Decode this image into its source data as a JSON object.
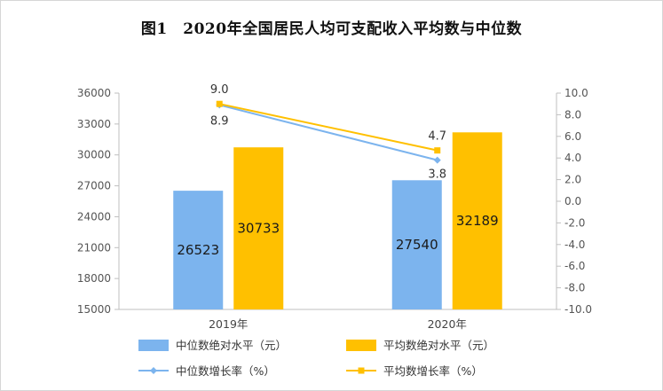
{
  "title": "图1　2020年全国居民人均可支配收入平均数与中位数",
  "chart_data": {
    "type": "bar",
    "title": "图1　2020年全国居民人均可支配收入平均数与中位数",
    "categories": [
      "2019年",
      "2020年"
    ],
    "series": [
      {
        "name": "中位数绝对水平（元）",
        "kind": "bar",
        "axis": "left",
        "color": "#7cb4ee",
        "values": [
          26523,
          27540
        ],
        "labels": [
          "26523",
          "27540"
        ]
      },
      {
        "name": "平均数绝对水平（元）",
        "kind": "bar",
        "axis": "left",
        "color": "#ffc000",
        "values": [
          30733,
          32189
        ],
        "labels": [
          "30733",
          "32189"
        ]
      },
      {
        "name": "中位数增长率（%）",
        "kind": "line",
        "axis": "right",
        "color": "#7cb4ee",
        "values": [
          8.9,
          3.8
        ],
        "labels": [
          "8.9",
          "3.8"
        ]
      },
      {
        "name": "平均数增长率（%）",
        "kind": "line",
        "axis": "right",
        "color": "#ffc000",
        "values": [
          9.0,
          4.7
        ],
        "labels": [
          "9.0",
          "4.7"
        ]
      }
    ],
    "left_axis": {
      "ylim": [
        15000,
        36000
      ],
      "ticks": [
        "15000",
        "18000",
        "21000",
        "24000",
        "27000",
        "30000",
        "33000",
        "36000"
      ]
    },
    "right_axis": {
      "ylim": [
        -10,
        10
      ],
      "ticks": [
        "-10.0",
        "-8.0",
        "-6.0",
        "-4.0",
        "-2.0",
        "0.0",
        "2.0",
        "4.0",
        "6.0",
        "8.0",
        "10.0"
      ]
    },
    "grid": false,
    "legend_position": "bottom"
  }
}
